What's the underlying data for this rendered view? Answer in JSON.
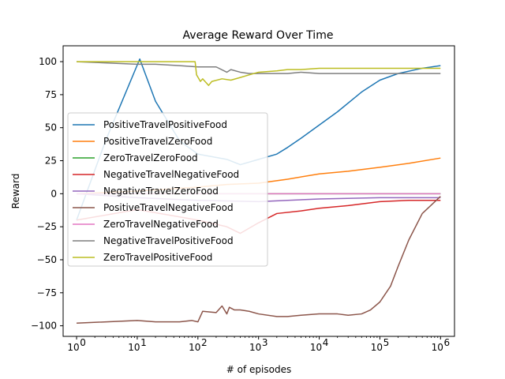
{
  "chart_data": {
    "type": "line",
    "title": "Average Reward Over Time",
    "xlabel": "# of episodes",
    "ylabel": "Reward",
    "xscale": "log",
    "xlim": [
      0.6,
      1700000
    ],
    "ylim": [
      -108,
      112
    ],
    "x_ticks": [
      1,
      10,
      100,
      1000,
      10000,
      100000,
      1000000
    ],
    "x_tick_labels": [
      {
        "base": "10",
        "exp": "0"
      },
      {
        "base": "10",
        "exp": "1"
      },
      {
        "base": "10",
        "exp": "2"
      },
      {
        "base": "10",
        "exp": "3"
      },
      {
        "base": "10",
        "exp": "4"
      },
      {
        "base": "10",
        "exp": "5"
      },
      {
        "base": "10",
        "exp": "6"
      }
    ],
    "y_ticks": [
      -100,
      -75,
      -50,
      -25,
      0,
      25,
      50,
      75,
      100
    ],
    "y_tick_labels": [
      "−100",
      "−75",
      "−50",
      "−25",
      "0",
      "25",
      "50",
      "75",
      "100"
    ],
    "grid": false,
    "legend_position": "center-left",
    "series": [
      {
        "name": "PositiveTravelPositiveFood",
        "color": "#1f77b4",
        "x": [
          1,
          3,
          11,
          20,
          50,
          100,
          300,
          500,
          1000,
          2000,
          3000,
          5000,
          10000,
          20000,
          50000,
          100000,
          200000,
          500000,
          1000000
        ],
        "y": [
          -20,
          40,
          102,
          70,
          40,
          30,
          26,
          22,
          26,
          30,
          35,
          42,
          52,
          62,
          77,
          86,
          91,
          95,
          97
        ]
      },
      {
        "name": "PositiveTravelZeroFood",
        "color": "#ff7f0e",
        "x": [
          1,
          10,
          100,
          300,
          1000,
          3000,
          10000,
          30000,
          100000,
          300000,
          1000000
        ],
        "y": [
          0,
          2,
          5,
          7,
          8,
          11,
          15,
          17,
          20,
          23,
          27
        ]
      },
      {
        "name": "ZeroTravelZeroFood",
        "color": "#2ca02c",
        "x": [
          1,
          10,
          100,
          1000,
          10000,
          100000,
          1000000
        ],
        "y": [
          0,
          0,
          0,
          0,
          0,
          0,
          0
        ]
      },
      {
        "name": "NegativeTravelNegativeFood",
        "color": "#d62728",
        "x": [
          1,
          10,
          100,
          300,
          500,
          1000,
          2000,
          5000,
          10000,
          30000,
          100000,
          300000,
          1000000
        ],
        "y": [
          -20,
          -12,
          -20,
          -25,
          -30,
          -22,
          -15,
          -13,
          -11,
          -9,
          -6,
          -5,
          -5
        ]
      },
      {
        "name": "NegativeTravelZeroFood",
        "color": "#9467bd",
        "x": [
          1,
          10,
          100,
          1000,
          3000,
          10000,
          100000,
          1000000
        ],
        "y": [
          0,
          -3,
          -5,
          -6,
          -5,
          -4,
          -3,
          -3
        ]
      },
      {
        "name": "PositiveTravelNegativeFood",
        "color": "#8c564b",
        "x": [
          1,
          10,
          20,
          50,
          80,
          100,
          120,
          200,
          250,
          300,
          330,
          400,
          500,
          700,
          1000,
          2000,
          3000,
          5000,
          10000,
          20000,
          30000,
          50000,
          70000,
          100000,
          150000,
          200000,
          300000,
          500000,
          1000000
        ],
        "y": [
          -98,
          -96,
          -97,
          -97,
          -96,
          -97,
          -89,
          -90,
          -85,
          -91,
          -86,
          -88,
          -88,
          -89,
          -91,
          -93,
          -93,
          -92,
          -91,
          -91,
          -92,
          -91,
          -88,
          -82,
          -70,
          -55,
          -35,
          -15,
          -2
        ]
      },
      {
        "name": "ZeroTravelNegativeFood",
        "color": "#e377c2",
        "x": [
          1,
          10,
          100,
          1000,
          10000,
          100000,
          1000000
        ],
        "y": [
          0,
          0,
          0,
          0,
          0,
          0,
          0
        ]
      },
      {
        "name": "NegativeTravelPositiveFood",
        "color": "#7f7f7f",
        "x": [
          1,
          10,
          20,
          50,
          100,
          200,
          300,
          350,
          500,
          700,
          1000,
          3000,
          5000,
          10000,
          30000,
          100000,
          1000000
        ],
        "y": [
          100,
          98,
          98,
          97,
          96,
          96,
          92,
          94,
          92,
          91,
          91,
          91,
          92,
          91,
          91,
          91,
          91
        ]
      },
      {
        "name": "ZeroTravelPositiveFood",
        "color": "#bcbd22",
        "x": [
          1,
          10,
          20,
          50,
          90,
          95,
          110,
          120,
          150,
          170,
          250,
          350,
          500,
          700,
          1000,
          2000,
          3000,
          5000,
          10000,
          100000,
          1000000
        ],
        "y": [
          100,
          100,
          100,
          100,
          100,
          90,
          85,
          87,
          82,
          85,
          87,
          86,
          88,
          90,
          92,
          93,
          94,
          94,
          95,
          95,
          95
        ]
      }
    ]
  }
}
